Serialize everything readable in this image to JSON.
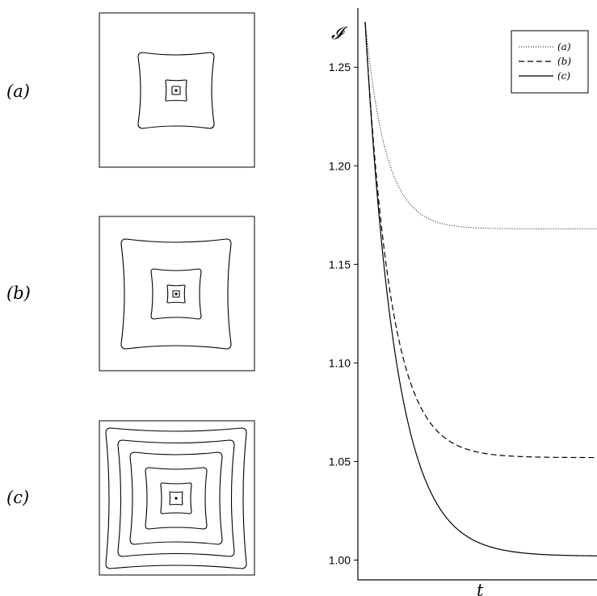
{
  "panels": [
    {
      "label": "(a)",
      "ring_count": 3
    },
    {
      "label": "(b)",
      "ring_count": 4
    },
    {
      "label": "(c)",
      "ring_count": 7
    }
  ],
  "chart_data": {
    "type": "line",
    "ylabel": "𝓘",
    "xlabel": "t",
    "ylim": [
      0.99,
      1.28
    ],
    "xlim": [
      0,
      1
    ],
    "yticks": [
      "1.00",
      "1.05",
      "1.10",
      "1.15",
      "1.20",
      "1.25"
    ],
    "grid": false,
    "legend": "top-right",
    "series": [
      {
        "name": "(a)",
        "style": "dotted",
        "start": 1.273,
        "end": 1.168,
        "rate": 11
      },
      {
        "name": "(b)",
        "style": "dashed",
        "start": 1.273,
        "end": 1.052,
        "rate": 9
      },
      {
        "name": "(c)",
        "style": "solid",
        "start": 1.273,
        "end": 1.002,
        "rate": 7.5
      }
    ]
  }
}
